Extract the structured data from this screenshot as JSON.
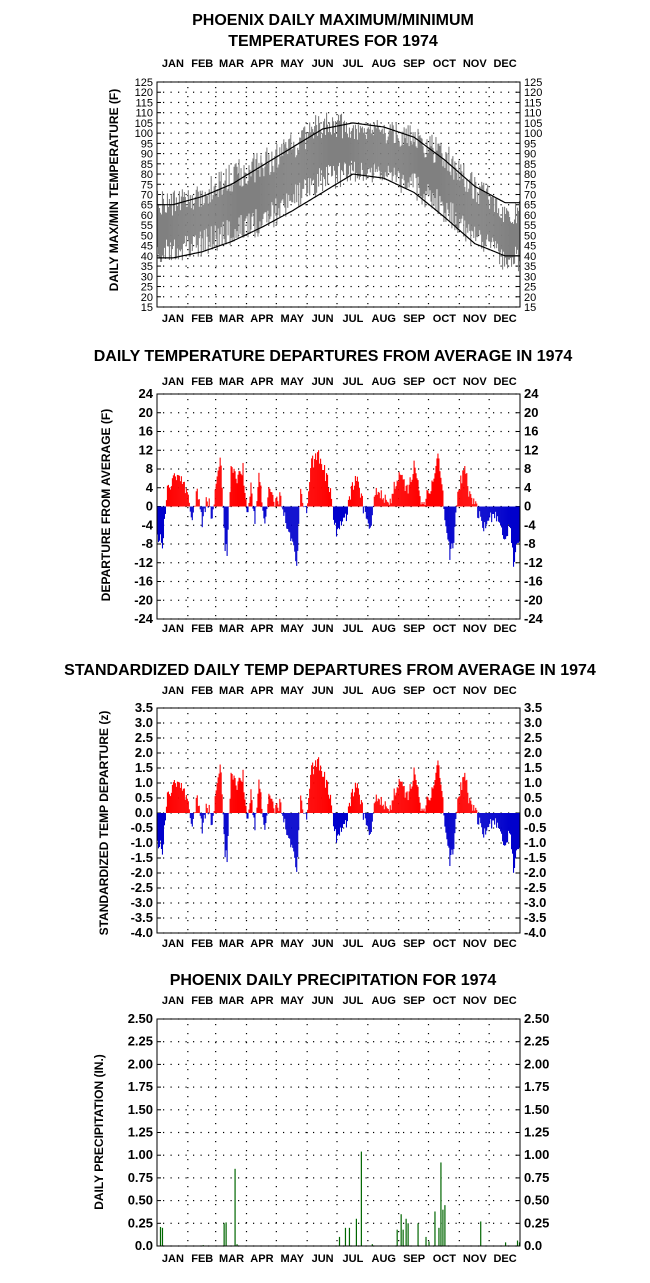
{
  "months": [
    "JAN",
    "FEB",
    "MAR",
    "APR",
    "MAY",
    "JUN",
    "JUL",
    "AUG",
    "SEP",
    "OCT",
    "NOV",
    "DEC"
  ],
  "chart_data": [
    {
      "type": "area",
      "title_line1": "PHOENIX DAILY MAXIMUM/MINIMUM",
      "title_line2": "TEMPERATURES FOR 1974",
      "ylabel": "DAILY MAX/MIN TEMPERATURE  (F)",
      "ylim": [
        15,
        125
      ],
      "yticks": [
        "125",
        "120",
        "115",
        "110",
        "105",
        "100",
        "95",
        "90",
        "85",
        "80",
        "75",
        "70",
        "65",
        "60",
        "55",
        "50",
        "45",
        "40",
        "35",
        "30",
        "25",
        "20",
        "15"
      ],
      "normal_max_monthly": [
        65,
        69,
        75,
        84,
        93,
        102,
        105,
        103,
        98,
        87,
        74,
        66
      ],
      "normal_min_monthly": [
        39,
        42,
        47,
        54,
        62,
        71,
        80,
        78,
        71,
        59,
        46,
        40
      ],
      "daily_range_envelope": {
        "upper_approx": [
          72,
          76,
          86,
          92,
          100,
          112,
          108,
          106,
          104,
          96,
          80,
          68
        ],
        "lower_approx": [
          36,
          40,
          44,
          50,
          60,
          70,
          76,
          74,
          68,
          56,
          42,
          32
        ]
      },
      "grid": true
    },
    {
      "type": "bar",
      "title": "DAILY TEMPERATURE DEPARTURES FROM AVERAGE IN 1974",
      "ylabel": "DEPARTURE FROM AVERAGE  (F)",
      "ylim": [
        -24,
        24
      ],
      "yticks": [
        "24",
        "20",
        "16",
        "12",
        "8",
        "4",
        "0",
        "-4",
        "-8",
        "-12",
        "-16",
        "-20",
        "-24"
      ],
      "positive_color": "#ff0000",
      "negative_color": "#0000cc",
      "grid": true
    },
    {
      "type": "bar",
      "title": "STANDARDIZED DAILY TEMP DEPARTURES FROM AVERAGE IN 1974",
      "ylabel": "STANDARDIZED TEMP DEPARTURE  (z)",
      "ylim": [
        -4.0,
        3.5
      ],
      "yticks": [
        "3.5",
        "3.0",
        "2.5",
        "2.0",
        "1.5",
        "1.0",
        "0.5",
        "0.0",
        "-0.5",
        "-1.0",
        "-1.5",
        "-2.0",
        "-2.5",
        "-3.0",
        "-3.5",
        "-4.0"
      ],
      "positive_color": "#ff0000",
      "negative_color": "#0000cc",
      "grid": true
    },
    {
      "type": "bar",
      "title": "PHOENIX DAILY PRECIPITATION FOR 1974",
      "ylabel": "DAILY PRECIPITATION (IN.)",
      "ylim": [
        0,
        2.5
      ],
      "yticks": [
        "2.50",
        "2.25",
        "2.00",
        "1.75",
        "1.50",
        "1.25",
        "1.00",
        "0.75",
        "0.50",
        "0.25",
        "0.0"
      ],
      "bar_color": "#006600",
      "events": [
        {
          "day": 3,
          "value": 0.21
        },
        {
          "day": 5,
          "value": 0.2
        },
        {
          "day": 46,
          "value": 0.01
        },
        {
          "day": 67,
          "value": 0.25
        },
        {
          "day": 69,
          "value": 0.26
        },
        {
          "day": 78,
          "value": 0.85
        },
        {
          "day": 80,
          "value": 0.02
        },
        {
          "day": 183,
          "value": 0.1
        },
        {
          "day": 189,
          "value": 0.2
        },
        {
          "day": 193,
          "value": 0.2
        },
        {
          "day": 200,
          "value": 0.3
        },
        {
          "day": 205,
          "value": 1.04
        },
        {
          "day": 216,
          "value": 0.02
        },
        {
          "day": 241,
          "value": 0.18
        },
        {
          "day": 245,
          "value": 0.35
        },
        {
          "day": 247,
          "value": 0.18
        },
        {
          "day": 250,
          "value": 0.3
        },
        {
          "day": 252,
          "value": 0.25
        },
        {
          "day": 262,
          "value": 0.25
        },
        {
          "day": 270,
          "value": 0.1
        },
        {
          "day": 273,
          "value": 0.05
        },
        {
          "day": 279,
          "value": 0.38
        },
        {
          "day": 283,
          "value": 0.2
        },
        {
          "day": 285,
          "value": 0.92
        },
        {
          "day": 287,
          "value": 0.4
        },
        {
          "day": 289,
          "value": 0.45
        },
        {
          "day": 325,
          "value": 0.27
        },
        {
          "day": 350,
          "value": 0.04
        },
        {
          "day": 362,
          "value": 0.06
        },
        {
          "day": 364,
          "value": 0.04
        }
      ],
      "grid": true
    }
  ]
}
